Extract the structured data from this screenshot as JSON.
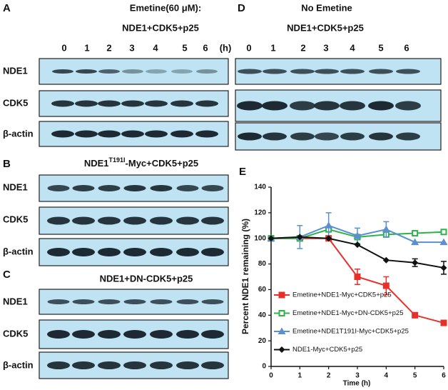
{
  "panels": {
    "A": {
      "label": "A",
      "title": "Emetine(60 μM):",
      "subtitle": "NDE1+CDK5+p25",
      "lanes": [
        "0",
        "1",
        "2",
        "3",
        "4",
        "5",
        "6",
        "(h)"
      ],
      "rows": [
        "NDE1",
        "CDK5",
        "β-actin"
      ]
    },
    "B": {
      "label": "B",
      "title": [
        "NDE1",
        "T191I",
        "-Myc+CDK5+p25"
      ],
      "rows": [
        "NDE1",
        "CDK5",
        "β-actin"
      ]
    },
    "C": {
      "label": "C",
      "title": "NDE1+DN-CDK5+p25",
      "rows": [
        "NDE1",
        "CDK5",
        "β-actin"
      ]
    },
    "D": {
      "label": "D",
      "title": "No Emetine",
      "subtitle": "NDE1+CDK5+p25",
      "lanes": [
        "0",
        "1",
        "2",
        "3",
        "4",
        "5",
        "6"
      ]
    }
  },
  "chart_data": {
    "type": "line",
    "label": "E",
    "x_label": "Time (h)",
    "y_label": "Percent NDE1 remaining (%)",
    "x": [
      0,
      1,
      2,
      3,
      4,
      5,
      6
    ],
    "xlim": [
      0,
      6
    ],
    "xticks": [
      0,
      1,
      2,
      3,
      4,
      5,
      6
    ],
    "ylim": [
      0,
      140
    ],
    "yticks": [
      0,
      20,
      40,
      60,
      80,
      100,
      120,
      140
    ],
    "series": [
      {
        "name": "Emetine+NDE1-Myc+CDK5+p25",
        "color": "#e8302a",
        "marker": "square",
        "values": [
          100,
          100,
          100,
          70,
          63,
          40,
          34
        ],
        "errors": [
          0,
          0,
          2,
          6,
          7,
          2,
          2
        ]
      },
      {
        "name": "Emetine+NDE1-Myc+DN-CDK5+p25",
        "color": "#2db34a",
        "marker": "square-open",
        "values": [
          100,
          100,
          107,
          101,
          103,
          104,
          105
        ],
        "errors": [
          0,
          0,
          0,
          0,
          0,
          0,
          0
        ]
      },
      {
        "name": "Emetine+NDE1T191I-Myc+CDK5+p25",
        "color": "#5b8fd0",
        "marker": "triangle",
        "values": [
          100,
          101,
          110,
          102,
          107,
          97,
          97
        ],
        "errors": [
          0,
          9,
          10,
          6,
          6,
          0,
          0
        ]
      },
      {
        "name": "NDE1-Myc+CDK5+p25",
        "color": "#111111",
        "marker": "diamond",
        "values": [
          100,
          101,
          100,
          95,
          83,
          81,
          77
        ],
        "errors": [
          0,
          0,
          0,
          0,
          0,
          3,
          5
        ]
      }
    ]
  }
}
